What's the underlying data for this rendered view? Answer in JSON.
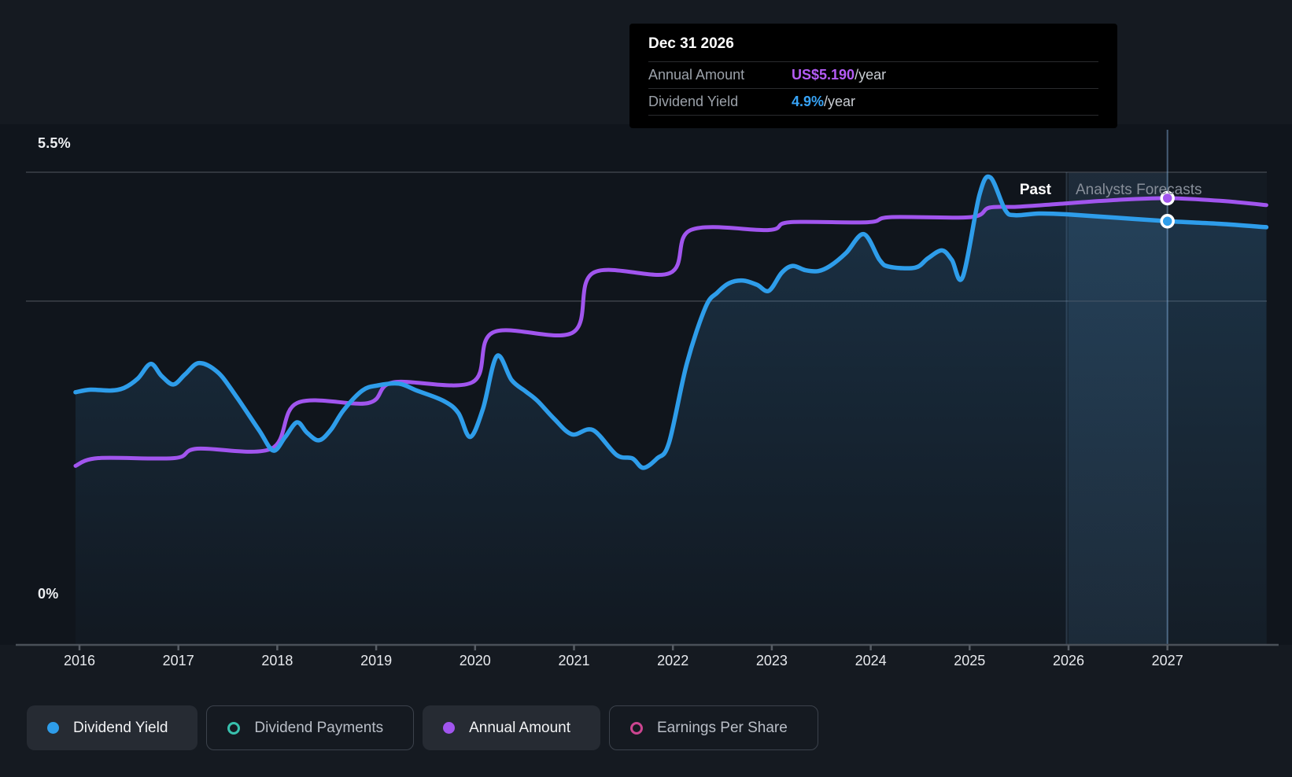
{
  "tooltip": {
    "date": "Dec 31 2026",
    "rows": [
      {
        "label": "Annual Amount",
        "value": "US$5.190",
        "suffix": "/year",
        "color": "#b45cf6"
      },
      {
        "label": "Dividend Yield",
        "value": "4.9%",
        "suffix": "/year",
        "color": "#37a3f6"
      }
    ]
  },
  "axis": {
    "y_top_label": "5.5%",
    "y_bottom_label": "0%",
    "years": [
      "2016",
      "2017",
      "2018",
      "2019",
      "2020",
      "2021",
      "2022",
      "2023",
      "2024",
      "2025",
      "2026",
      "2027"
    ]
  },
  "annotations": {
    "past_label": "Past",
    "forecast_label": "Analysts Forecasts"
  },
  "legend": {
    "items": [
      {
        "label": "Dividend Yield",
        "slug": "dividend-yield",
        "marker": "filled",
        "color": "#2e9dea",
        "active": true
      },
      {
        "label": "Dividend Payments",
        "slug": "dividend-payments",
        "marker": "ring",
        "color": "#38c0ad",
        "active": false
      },
      {
        "label": "Annual Amount",
        "slug": "annual-amount",
        "marker": "filled",
        "color": "#a155ee",
        "active": true
      },
      {
        "label": "Earnings Per Share",
        "slug": "earnings-per-share",
        "marker": "ring",
        "color": "#cc4590",
        "active": false
      }
    ]
  },
  "colors": {
    "dividend_yield_line": "#2e9dea",
    "annual_amount_line": "#a155ee",
    "page_background": "#151a21",
    "plot_background": "#10151c",
    "tooltip_background": "#000000",
    "gridline": "#3c424a",
    "axis_line": "#4a5058"
  },
  "chart_data": {
    "type": "line",
    "title": "Dividend history and forecast",
    "x_domain": [
      2015.96,
      2028.0
    ],
    "x_ticks": [
      2016,
      2017,
      2018,
      2019,
      2020,
      2021,
      2022,
      2023,
      2024,
      2025,
      2026,
      2027
    ],
    "y_axis": {
      "unit": "%",
      "min": 0,
      "max": 5.5,
      "gridline_values": [
        5.5,
        4.0
      ],
      "top_label": "5.5%",
      "bottom_label": "0%"
    },
    "past_forecast_divider_year": 2025.98,
    "highlight_band_years": [
      2026.0,
      2027.0
    ],
    "crosshair_year": 2027.0,
    "legend_position": "bottom",
    "series": [
      {
        "name": "Dividend Yield",
        "unit": "%",
        "color": "#2e9dea",
        "style": "line-with-area-fill",
        "marker_point": {
          "year": 2027.0,
          "value": 4.93,
          "display": "4.9%/year"
        },
        "points": [
          [
            2015.96,
            2.94
          ],
          [
            2016.11,
            2.97
          ],
          [
            2016.31,
            2.96
          ],
          [
            2016.45,
            2.99
          ],
          [
            2016.59,
            3.1
          ],
          [
            2016.72,
            3.27
          ],
          [
            2016.83,
            3.13
          ],
          [
            2016.95,
            3.03
          ],
          [
            2017.07,
            3.15
          ],
          [
            2017.21,
            3.28
          ],
          [
            2017.4,
            3.17
          ],
          [
            2017.58,
            2.9
          ],
          [
            2017.82,
            2.49
          ],
          [
            2017.96,
            2.26
          ],
          [
            2018.08,
            2.42
          ],
          [
            2018.2,
            2.59
          ],
          [
            2018.3,
            2.47
          ],
          [
            2018.42,
            2.38
          ],
          [
            2018.54,
            2.5
          ],
          [
            2018.67,
            2.73
          ],
          [
            2018.86,
            2.96
          ],
          [
            2019.02,
            3.02
          ],
          [
            2019.23,
            3.04
          ],
          [
            2019.41,
            2.96
          ],
          [
            2019.68,
            2.84
          ],
          [
            2019.83,
            2.7
          ],
          [
            2019.95,
            2.42
          ],
          [
            2020.08,
            2.75
          ],
          [
            2020.22,
            3.36
          ],
          [
            2020.37,
            3.08
          ],
          [
            2020.51,
            2.95
          ],
          [
            2020.63,
            2.84
          ],
          [
            2020.8,
            2.63
          ],
          [
            2020.98,
            2.45
          ],
          [
            2021.19,
            2.5
          ],
          [
            2021.43,
            2.21
          ],
          [
            2021.59,
            2.17
          ],
          [
            2021.7,
            2.06
          ],
          [
            2021.84,
            2.17
          ],
          [
            2021.96,
            2.35
          ],
          [
            2022.14,
            3.27
          ],
          [
            2022.33,
            3.93
          ],
          [
            2022.45,
            4.1
          ],
          [
            2022.57,
            4.21
          ],
          [
            2022.71,
            4.24
          ],
          [
            2022.85,
            4.19
          ],
          [
            2022.97,
            4.12
          ],
          [
            2023.1,
            4.33
          ],
          [
            2023.21,
            4.41
          ],
          [
            2023.34,
            4.36
          ],
          [
            2023.47,
            4.35
          ],
          [
            2023.59,
            4.41
          ],
          [
            2023.75,
            4.56
          ],
          [
            2023.93,
            4.78
          ],
          [
            2024.09,
            4.48
          ],
          [
            2024.19,
            4.4
          ],
          [
            2024.45,
            4.39
          ],
          [
            2024.58,
            4.5
          ],
          [
            2024.72,
            4.59
          ],
          [
            2024.82,
            4.48
          ],
          [
            2024.93,
            4.28
          ],
          [
            2025.1,
            5.24
          ],
          [
            2025.21,
            5.44
          ],
          [
            2025.36,
            5.06
          ],
          [
            2025.46,
            5.0
          ],
          [
            2025.7,
            5.02
          ],
          [
            2025.98,
            5.01
          ],
          [
            2026.49,
            4.97
          ],
          [
            2027.0,
            4.93
          ],
          [
            2027.53,
            4.9
          ],
          [
            2028.0,
            4.86
          ]
        ]
      },
      {
        "name": "Annual Amount",
        "unit": "US$/year",
        "color": "#a155ee",
        "style": "line",
        "marker_point": {
          "year": 2027.0,
          "value": 5.19,
          "display": "US$5.190/year"
        },
        "points": [
          [
            2015.96,
            2.08
          ],
          [
            2016.19,
            2.17
          ],
          [
            2016.96,
            2.17
          ],
          [
            2017.19,
            2.28
          ],
          [
            2017.94,
            2.28
          ],
          [
            2018.2,
            2.81
          ],
          [
            2018.92,
            2.81
          ],
          [
            2019.17,
            3.05
          ],
          [
            2019.97,
            3.05
          ],
          [
            2020.18,
            3.63
          ],
          [
            2020.99,
            3.63
          ],
          [
            2021.19,
            4.32
          ],
          [
            2021.97,
            4.32
          ],
          [
            2022.18,
            4.82
          ],
          [
            2022.97,
            4.82
          ],
          [
            2023.18,
            4.91
          ],
          [
            2023.97,
            4.91
          ],
          [
            2024.2,
            4.97
          ],
          [
            2025.01,
            4.97
          ],
          [
            2025.2,
            5.08
          ],
          [
            2025.49,
            5.09
          ],
          [
            2025.98,
            5.13
          ],
          [
            2026.49,
            5.17
          ],
          [
            2027.0,
            5.19
          ],
          [
            2027.53,
            5.16
          ],
          [
            2028.0,
            5.11
          ]
        ]
      },
      {
        "name": "Dividend Payments",
        "unit": "US$",
        "color": "#38c0ad",
        "style": "hidden",
        "points": []
      },
      {
        "name": "Earnings Per Share",
        "unit": "US$",
        "color": "#cc4590",
        "style": "hidden",
        "points": []
      }
    ]
  }
}
